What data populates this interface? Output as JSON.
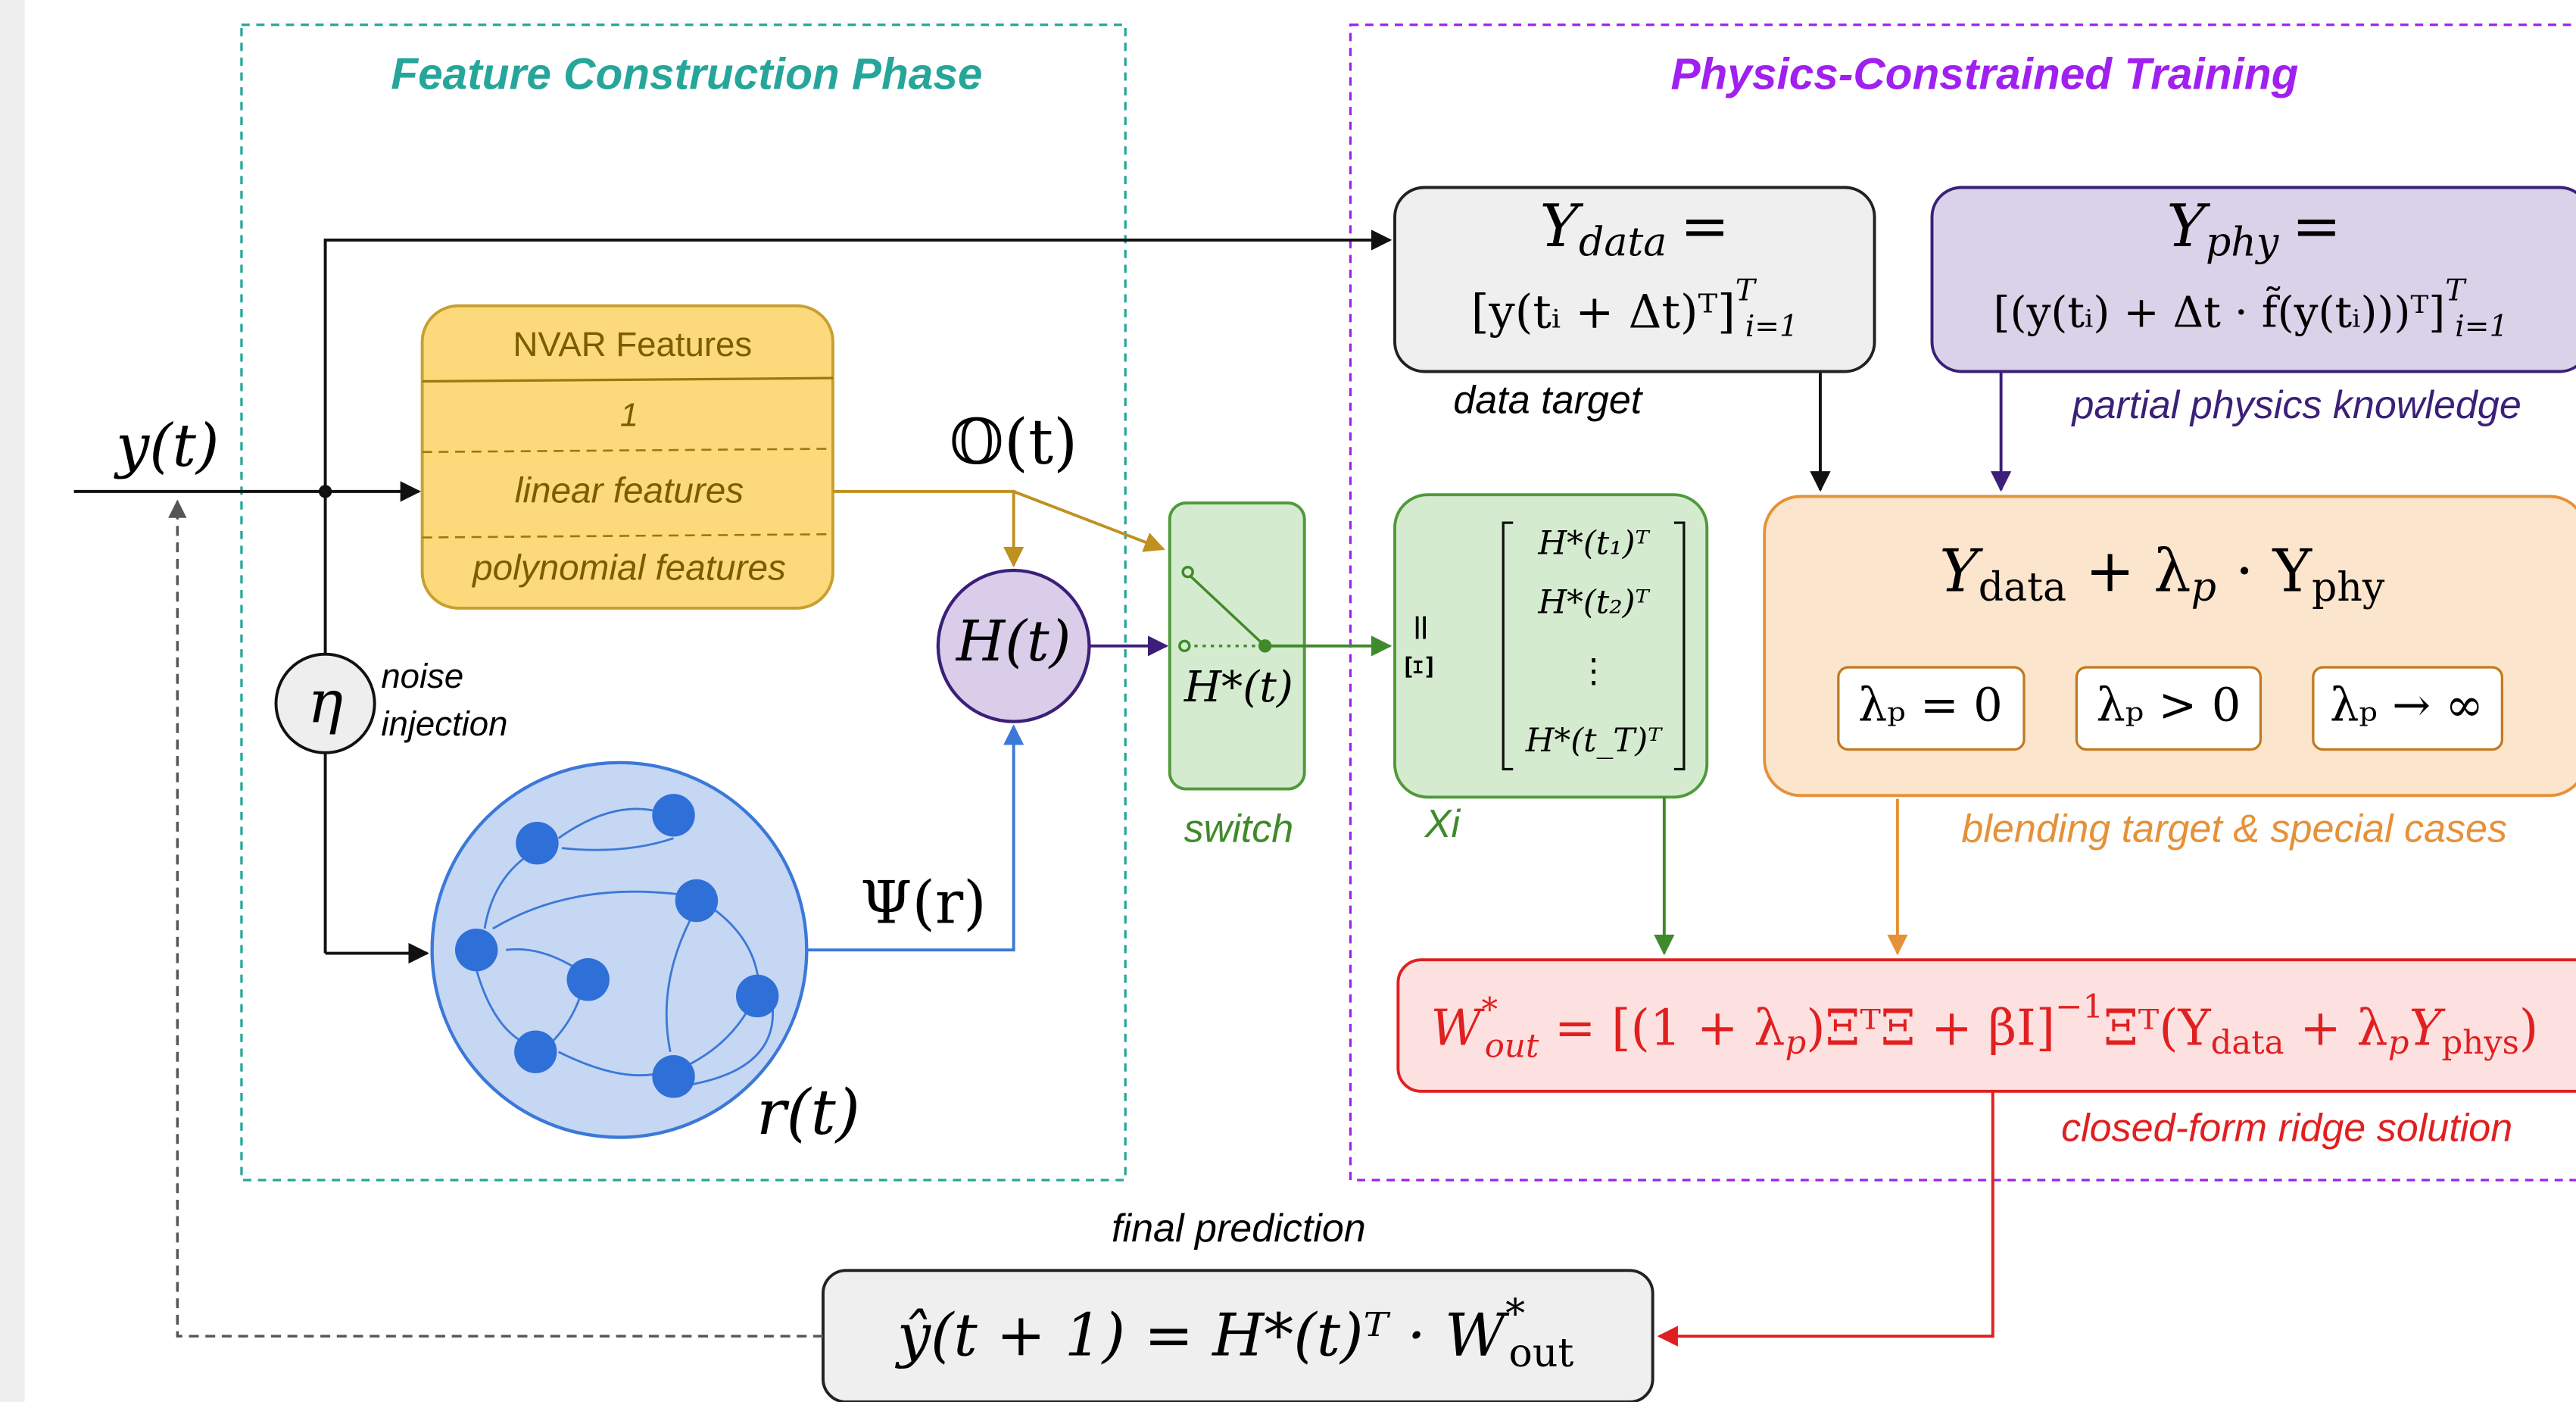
{
  "panels": {
    "feature": "Feature Construction Phase",
    "training": "Physics-Constrained Training"
  },
  "input": "y(t)",
  "nvar": {
    "title": "NVAR Features",
    "rows": [
      "1",
      "linear features",
      "polynomial features"
    ]
  },
  "nvar_output": "𝕆(t)",
  "h_node": "H(t)",
  "noise": {
    "symbol": "η",
    "label": [
      "noise",
      "injection"
    ]
  },
  "reservoir": {
    "output": "Ψ(r)",
    "state": "r(t)"
  },
  "switch": {
    "output": "H*(t)",
    "label": "switch"
  },
  "xi": {
    "lhs": "Ξ =",
    "rows": [
      "H*(t₁)ᵀ",
      "H*(t₂)ᵀ",
      "⋮",
      "H*(t_T)ᵀ"
    ],
    "label": "Xi"
  },
  "ydata": {
    "line1": [
      "Y",
      "data",
      "="
    ],
    "line2": [
      "[y(tᵢ + Δt)ᵀ]",
      "T",
      "i=1"
    ],
    "caption": "data target"
  },
  "yphy": {
    "line1": [
      "Y",
      "phy",
      "="
    ],
    "line2": [
      "[(y(tᵢ) + Δt · f̃(y(tᵢ)))ᵀ]",
      "T",
      "i=1"
    ],
    "caption": "partial physics knowledge"
  },
  "blend": {
    "formula": [
      "Y",
      "data",
      " + λ",
      "p",
      " · Y",
      "phy"
    ],
    "cases": [
      "λₚ = 0",
      "λₚ > 0",
      "λₚ → ∞"
    ],
    "caption": "blending target & special cases"
  },
  "solution": {
    "formula": [
      "W",
      "*",
      "out",
      " = [(1 + λ",
      "p",
      ")ΞᵀΞ + βI]",
      "−1",
      "Ξᵀ(Y",
      "data",
      " + λ",
      "p",
      "Y",
      "phys",
      ")"
    ],
    "caption": "closed-form ridge solution"
  },
  "prediction": {
    "formula": [
      "ŷ(t + 1) = H*(t)ᵀ · W",
      "*",
      "out"
    ],
    "caption": "final prediction"
  }
}
